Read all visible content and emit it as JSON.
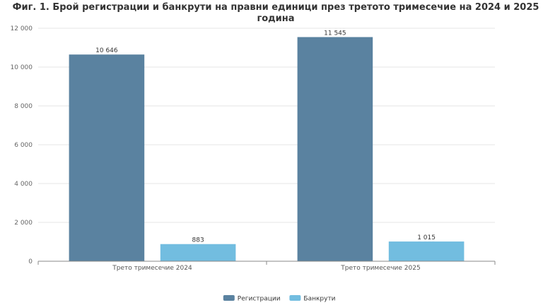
{
  "chart_data": {
    "type": "bar",
    "title_line1": "Фиг. 1. Брой регистрации и банкрути на правни единици през третото тримесечие на 2024 и 2025",
    "title_line2": "година",
    "categories": [
      "Трето тримесечие 2024",
      "Трето тримесечие 2025"
    ],
    "series": [
      {
        "name": "Регистрации",
        "values": [
          10646,
          11545
        ],
        "labels": [
          "10 646",
          "11 545"
        ],
        "color": "#5a82a0"
      },
      {
        "name": "Банкрути",
        "values": [
          883,
          1015
        ],
        "labels": [
          "883",
          "1 015"
        ],
        "color": "#72bde0"
      }
    ],
    "ylim": [
      0,
      12000
    ],
    "yticks": [
      0,
      2000,
      4000,
      6000,
      8000,
      10000,
      12000
    ],
    "ytick_labels": [
      "0",
      "2 000",
      "4 000",
      "6 000",
      "8 000",
      "10 000",
      "12 000"
    ],
    "grid": true,
    "legend": "bottom-center"
  }
}
